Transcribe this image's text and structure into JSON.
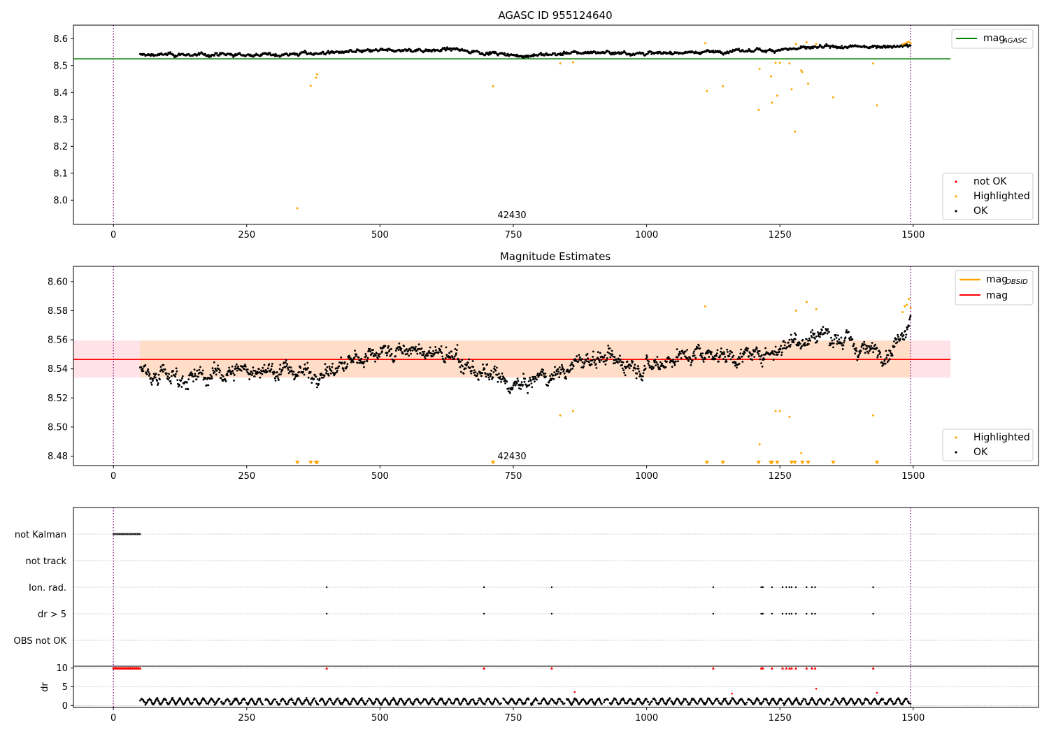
{
  "figure": {
    "background": "#ffffff",
    "colors": {
      "ok": "#000000",
      "highlighted": "#ffa500",
      "not_ok": "#ff0000",
      "agasc_line": "#008000",
      "mag_line": "#ff0000",
      "band_outer": "#ffc0cb",
      "band_inner": "#ffdab9",
      "obs_boundary": "#800080"
    }
  },
  "chart_data": [
    {
      "type": "scatter",
      "title": "AGASC ID 955124640",
      "xlim": [
        -75,
        1735
      ],
      "ylim": [
        7.91,
        8.65
      ],
      "xticks": [
        "0",
        "250",
        "500",
        "750",
        "1000",
        "1250",
        "1500"
      ],
      "yticks": [
        "8.0",
        "8.1",
        "8.2",
        "8.3",
        "8.4",
        "8.5",
        "8.6"
      ],
      "grid": false,
      "obs_boundaries": [
        0,
        1495
      ],
      "annotations": [
        {
          "text": "42430",
          "x": 747
        }
      ],
      "mag_agasc": 8.525,
      "legend_top": {
        "position": "top-right",
        "entries": [
          {
            "label": "mag",
            "sub": "AGASC",
            "color": "#008000"
          }
        ]
      },
      "legend_bottom": {
        "position": "lower-right",
        "entries": [
          {
            "label": "not OK",
            "color": "#ff0000"
          },
          {
            "label": "Highlighted",
            "color": "#ffa500"
          },
          {
            "label": "OK",
            "color": "#000000"
          }
        ]
      },
      "series": [
        {
          "name": "OK",
          "trend": {
            "x_range": [
              50,
              1495
            ],
            "x": [
              50,
              300,
              500,
              640,
              760,
              900,
              1000,
              1200,
              1300,
              1495
            ],
            "y": [
              8.54,
              8.54,
              8.555,
              8.56,
              8.535,
              8.55,
              8.545,
              8.555,
              8.565,
              8.575
            ],
            "spread": 0.008
          }
        },
        {
          "name": "Highlighted",
          "points": [
            [
              345,
              7.97
            ],
            [
              370,
              8.425
            ],
            [
              380,
              8.455
            ],
            [
              382,
              8.467
            ],
            [
              712,
              8.423
            ],
            [
              838,
              8.508
            ],
            [
              862,
              8.512
            ],
            [
              1110,
              8.583
            ],
            [
              1113,
              8.405
            ],
            [
              1143,
              8.423
            ],
            [
              1210,
              8.335
            ],
            [
              1212,
              8.488
            ],
            [
              1233,
              8.46
            ],
            [
              1235,
              8.362
            ],
            [
              1242,
              8.51
            ],
            [
              1245,
              8.388
            ],
            [
              1250,
              8.51
            ],
            [
              1268,
              8.508
            ],
            [
              1272,
              8.412
            ],
            [
              1278,
              8.255
            ],
            [
              1280,
              8.58
            ],
            [
              1290,
              8.482
            ],
            [
              1292,
              8.476
            ],
            [
              1300,
              8.586
            ],
            [
              1303,
              8.433
            ],
            [
              1318,
              8.58
            ],
            [
              1350,
              8.382
            ],
            [
              1425,
              8.508
            ],
            [
              1432,
              8.352
            ],
            [
              1480,
              8.578
            ],
            [
              1484,
              8.582
            ],
            [
              1488,
              8.586
            ],
            [
              1492,
              8.588
            ],
            [
              1495,
              8.583
            ]
          ]
        },
        {
          "name": "not OK",
          "points": []
        }
      ]
    },
    {
      "type": "scatter",
      "title": "Magnitude Estimates",
      "xlim": [
        -75,
        1735
      ],
      "ylim": [
        8.4735,
        8.6105
      ],
      "xticks": [
        "0",
        "250",
        "500",
        "750",
        "1000",
        "1250",
        "1500"
      ],
      "yticks": [
        "8.48",
        "8.50",
        "8.52",
        "8.54",
        "8.56",
        "8.58",
        "8.60"
      ],
      "grid": false,
      "obs_boundaries": [
        0,
        1495
      ],
      "annotations": [
        {
          "text": "42430",
          "x": 747
        }
      ],
      "mag": 8.5465,
      "band_outer": [
        8.534,
        8.5595
      ],
      "band_inner": [
        8.534,
        8.5595
      ],
      "band_x_end": 1570,
      "legend_top": {
        "position": "top-right",
        "entries": [
          {
            "label": "mag",
            "sub": "OBSID",
            "color": "#ffa500"
          },
          {
            "label": "mag",
            "sub": "",
            "color": "#ff0000"
          }
        ]
      },
      "legend_bottom": {
        "position": "lower-right",
        "entries": [
          {
            "label": "Highlighted",
            "color": "#ffa500"
          },
          {
            "label": "OK",
            "color": "#000000"
          }
        ]
      },
      "series": [
        {
          "name": "OK",
          "trend": {
            "x_range": [
              50,
              1495
            ],
            "x": [
              50,
              150,
              250,
              400,
              500,
              620,
              700,
              760,
              900,
              1000,
              1100,
              1200,
              1280,
              1340,
              1400,
              1460,
              1495
            ],
            "y": [
              8.54,
              8.533,
              8.54,
              8.537,
              8.553,
              8.55,
              8.535,
              8.527,
              8.548,
              8.543,
              8.552,
              8.548,
              8.56,
              8.565,
              8.553,
              8.553,
              8.578
            ],
            "spread": 0.0075
          }
        },
        {
          "name": "Highlighted",
          "points": [
            [
              838,
              8.508
            ],
            [
              862,
              8.511
            ],
            [
              1110,
              8.583
            ],
            [
              1212,
              8.488
            ],
            [
              1242,
              8.511
            ],
            [
              1250,
              8.511
            ],
            [
              1268,
              8.507
            ],
            [
              1280,
              8.58
            ],
            [
              1290,
              8.482
            ],
            [
              1300,
              8.586
            ],
            [
              1318,
              8.581
            ],
            [
              1425,
              8.508
            ],
            [
              1480,
              8.579
            ],
            [
              1484,
              8.583
            ],
            [
              1488,
              8.584
            ],
            [
              1492,
              8.588
            ],
            [
              1495,
              8.582
            ]
          ]
        },
        {
          "name": "Highlighted (below range)",
          "points": [
            [
              345
            ],
            [
              370
            ],
            [
              380
            ],
            [
              382
            ],
            [
              712
            ],
            [
              1113
            ],
            [
              1143
            ],
            [
              1210
            ],
            [
              1233
            ],
            [
              1235
            ],
            [
              1245
            ],
            [
              1272
            ],
            [
              1278
            ],
            [
              1292
            ],
            [
              1303
            ],
            [
              1350
            ],
            [
              1432
            ]
          ]
        }
      ]
    },
    {
      "type": "scatter",
      "title": "",
      "xlim": [
        -75,
        1735
      ],
      "xticks": [
        "0",
        "250",
        "500",
        "750",
        "1000",
        "1250",
        "1500"
      ],
      "grid": true,
      "obs_boundaries": [
        0,
        1495
      ],
      "flag_labels": [
        "not Kalman",
        "not track",
        "Ion. rad.",
        "dr > 5",
        "OBS not OK"
      ],
      "flags": {
        "not Kalman": {
          "x_range": [
            0,
            50
          ]
        },
        "not track": {
          "x": []
        },
        "Ion. rad.": {
          "x": [
            400,
            695,
            822,
            1125,
            1215,
            1218,
            1235,
            1255,
            1262,
            1268,
            1272,
            1280,
            1300,
            1310,
            1316,
            1425
          ]
        },
        "dr > 5": {
          "x": [
            400,
            695,
            822,
            1125,
            1215,
            1218,
            1235,
            1255,
            1262,
            1268,
            1272,
            1280,
            1300,
            1310,
            1316,
            1425
          ]
        },
        "OBS not OK": {
          "x": []
        }
      },
      "dr_ylabel": "dr",
      "dr_yticks": [
        "0",
        "5",
        "10"
      ],
      "dr_ylim": [
        -0.5,
        10.5
      ],
      "dr_capped": {
        "x_range": [
          0,
          50
        ],
        "x": [
          400,
          695,
          822,
          1125,
          1215,
          1218,
          1235,
          1255,
          1262,
          1268,
          1272,
          1280,
          1300,
          1310,
          1316,
          1425
        ],
        "value": 10
      },
      "dr_red": [
        [
          865,
          3.6
        ],
        [
          1160,
          3.2
        ],
        [
          1318,
          4.5
        ],
        [
          1432,
          3.4
        ]
      ],
      "dr_ok": {
        "x_range": [
          50,
          1495
        ],
        "mean": 1.1,
        "amp": 0.9
      }
    }
  ]
}
